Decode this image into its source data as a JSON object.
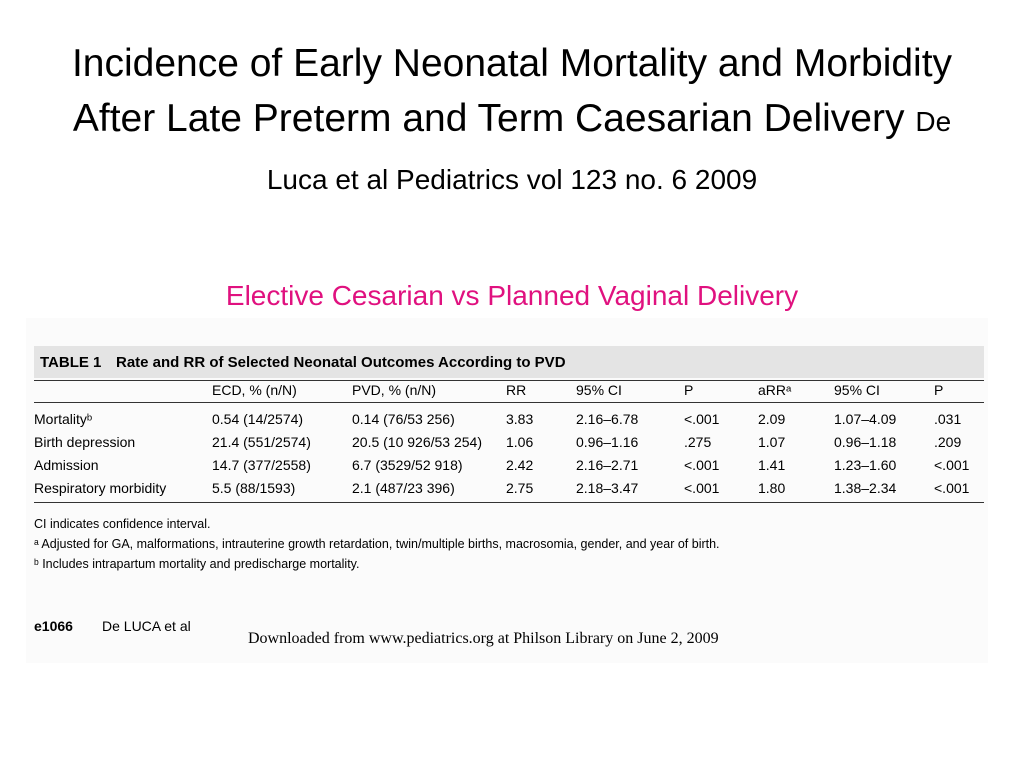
{
  "slide": {
    "title_main": "Incidence of Early Neonatal Mortality and Morbidity After Late Preterm and Term Caesarian Delivery",
    "title_citation": "De Luca et al Pediatrics vol 123 no. 6  2009",
    "subtitle": "Elective Cesarian vs Planned Vaginal Delivery"
  },
  "table": {
    "tag": "TABLE 1",
    "caption": "Rate and RR of Selected Neonatal Outcomes According to PVD",
    "headers": [
      "",
      "ECD, % (n/N)",
      "PVD, % (n/N)",
      "RR",
      "95% CI",
      "P",
      "aRRᵃ",
      "95% CI",
      "P"
    ],
    "rows": [
      [
        "Mortalityᵇ",
        "0.54 (14/2574)",
        "0.14 (76/53 256)",
        "3.83",
        "2.16–6.78",
        "<.001",
        "2.09",
        "1.07–4.09",
        ".031"
      ],
      [
        "Birth depression",
        "21.4 (551/2574)",
        "20.5 (10 926/53 254)",
        "1.06",
        "0.96–1.16",
        ".275",
        "1.07",
        "0.96–1.18",
        ".209"
      ],
      [
        "Admission",
        "14.7 (377/2558)",
        "6.7 (3529/52 918)",
        "2.42",
        "2.16–2.71",
        "<.001",
        "1.41",
        "1.23–1.60",
        "<.001"
      ],
      [
        "Respiratory morbidity",
        "5.5 (88/1593)",
        "2.1 (487/23 396)",
        "2.75",
        "2.18–3.47",
        "<.001",
        "1.80",
        "1.38–2.34",
        "<.001"
      ]
    ],
    "footnotes": [
      "CI indicates confidence interval.",
      "ᵃ Adjusted for GA, malformations, intrauterine growth retardation, twin/multiple births, macrosomia, gender, and year of birth.",
      "ᵇ Includes intrapartum mortality and predischarge mortality."
    ]
  },
  "page_footer": {
    "page_number": "e1066",
    "authors": "De LUCA et al",
    "download_note": "Downloaded from www.pediatrics.org at Philson Library on June 2, 2009"
  }
}
